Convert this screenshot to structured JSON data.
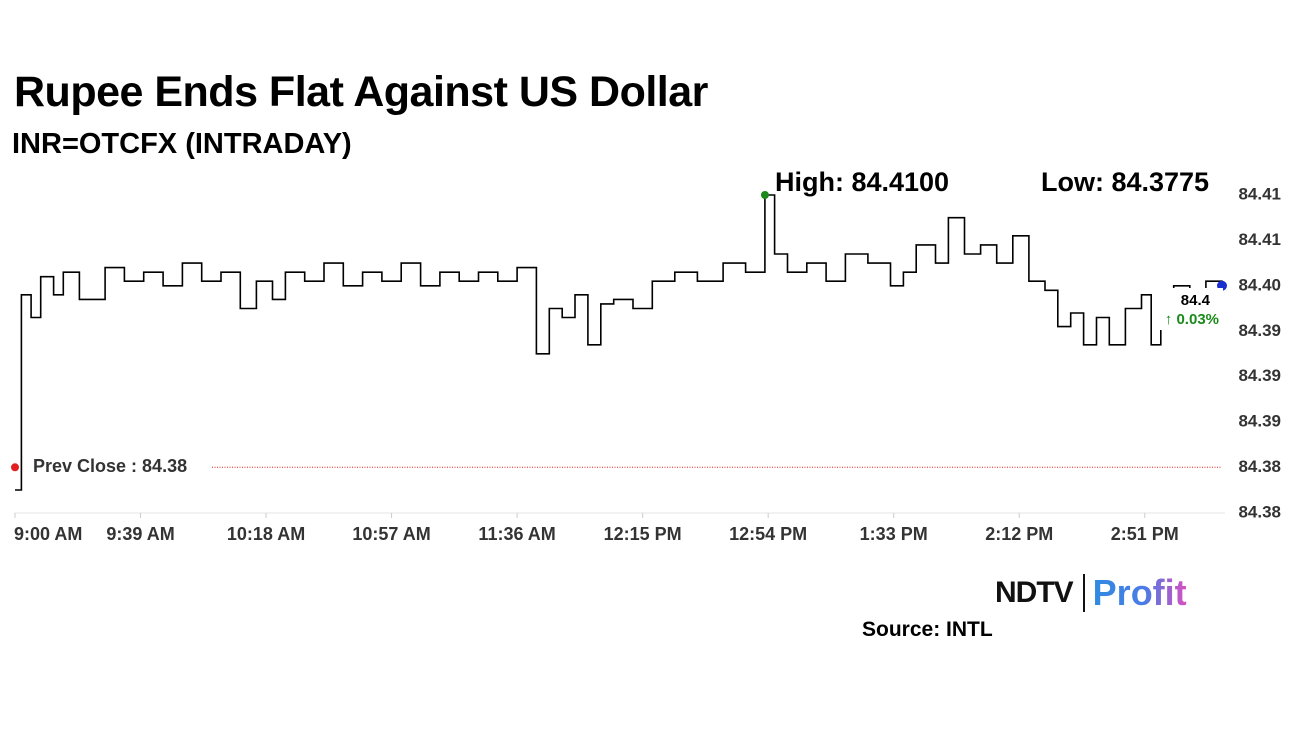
{
  "title": "Rupee Ends Flat Against US Dollar",
  "subtitle": "INR=OTCFX (INTRADAY)",
  "high_label": "High: 84.4100",
  "low_label": "Low: 84.3775",
  "prev_close_label": "Prev Close : 84.38",
  "current_value": "84.4",
  "current_change": "↑ 0.03%",
  "brand": {
    "ndtv": "NDTV",
    "profit": "Profit"
  },
  "source": "Source: INTL",
  "colors": {
    "line": "#000000",
    "high_marker": "#1a8a1a",
    "current_marker": "#1a2fd0",
    "prev_close": "#e02020",
    "change_up": "#1a8a1a",
    "axis_text": "#333333"
  },
  "chart_data": {
    "type": "line",
    "title": "Rupee Ends Flat Against US Dollar",
    "subtitle": "INR=OTCFX (INTRADAY)",
    "x_tick_labels": [
      "9:00 AM",
      "9:39 AM",
      "10:18 AM",
      "10:57 AM",
      "11:36 AM",
      "12:15 PM",
      "12:54 PM",
      "1:33 PM",
      "2:12 PM",
      "2:51 PM"
    ],
    "y_tick_labels": [
      "84.41",
      "84.41",
      "84.40",
      "84.39",
      "84.39",
      "84.39",
      "84.38",
      "84.38"
    ],
    "ylim": [
      84.3775,
      84.41
    ],
    "prev_close": 84.38,
    "high": 84.41,
    "low": 84.3775,
    "last": 84.4,
    "change_pct": 0.03,
    "grid": false,
    "series": [
      {
        "x": [
          "9:00",
          "9:02",
          "9:05",
          "9:08",
          "9:12",
          "9:15",
          "9:20",
          "9:28",
          "9:34",
          "9:40",
          "9:46",
          "9:52",
          "9:58",
          "10:04",
          "10:10",
          "10:15",
          "10:20",
          "10:24",
          "10:30",
          "10:36",
          "10:42",
          "10:48",
          "10:54",
          "11:00",
          "11:06",
          "11:12",
          "11:18",
          "11:24",
          "11:30",
          "11:36",
          "11:42",
          "11:46",
          "11:50",
          "11:54",
          "11:58",
          "12:02",
          "12:06",
          "12:12",
          "12:18",
          "12:25",
          "12:32",
          "12:40",
          "12:47",
          "12:53",
          "12:56",
          "13:00",
          "13:06",
          "13:12",
          "13:18",
          "13:25",
          "13:32",
          "13:36",
          "13:40",
          "13:46",
          "13:50",
          "13:55",
          "14:00",
          "14:05",
          "14:10",
          "14:15",
          "14:20",
          "14:24",
          "14:28",
          "14:32",
          "14:36",
          "14:40",
          "14:45",
          "14:50",
          "14:53",
          "14:56",
          "15:00",
          "15:05",
          "15:10",
          "15:15"
        ],
        "values": [
          84.3775,
          84.399,
          84.3965,
          84.401,
          84.399,
          84.4015,
          84.3985,
          84.402,
          84.4005,
          84.4015,
          84.4,
          84.4025,
          84.4005,
          84.4015,
          84.3975,
          84.4005,
          84.3985,
          84.4015,
          84.4005,
          84.4025,
          84.4,
          84.4015,
          84.4005,
          84.4025,
          84.4,
          84.4015,
          84.4005,
          84.4015,
          84.4005,
          84.402,
          84.3925,
          84.3975,
          84.3965,
          84.399,
          84.3935,
          84.398,
          84.3985,
          84.3975,
          84.4005,
          84.4015,
          84.4005,
          84.4025,
          84.4015,
          84.41,
          84.4035,
          84.4015,
          84.4025,
          84.4005,
          84.4035,
          84.4025,
          84.4,
          84.4015,
          84.4045,
          84.4025,
          84.4075,
          84.4035,
          84.4045,
          84.4025,
          84.4055,
          84.4005,
          84.3995,
          84.3955,
          84.397,
          84.3935,
          84.3965,
          84.3935,
          84.3975,
          84.399,
          84.3935,
          84.3975,
          84.4,
          84.399,
          84.4005,
          84.4
        ]
      }
    ]
  }
}
